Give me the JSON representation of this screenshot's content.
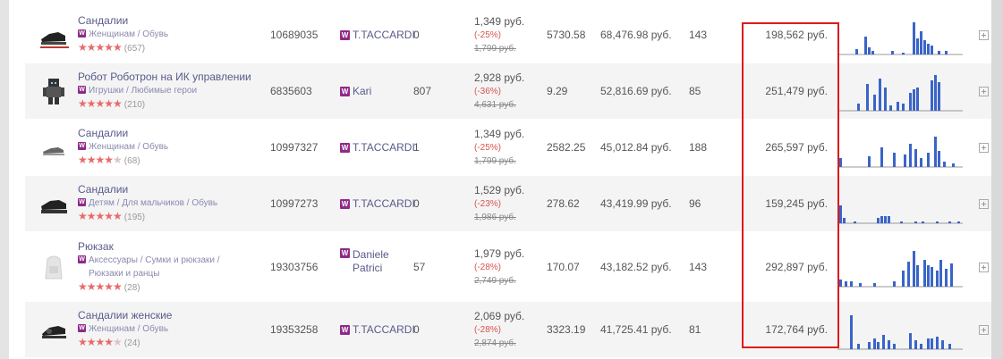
{
  "rows": [
    {
      "name": "Сандалии",
      "category": "Женщинам / Обувь",
      "stars": 5,
      "reviews": "(657)",
      "sku": "10689035",
      "brand": "T.TACCARDI",
      "stock": "0",
      "price": "1,349 руб.",
      "discount": "(-25%)",
      "old_price": "1,799 руб.",
      "col6": "5730.58",
      "revenue": "68,476.98 руб.",
      "col8": "143",
      "highlighted": "198,562 руб.",
      "icon": "sandal-icon",
      "bars": [
        0,
        0,
        0,
        0,
        0,
        0,
        0,
        0,
        0,
        0,
        0,
        0,
        0,
        0,
        0,
        0,
        0,
        0,
        0,
        0,
        0,
        0,
        0,
        0,
        0,
        0,
        0,
        0,
        0,
        0,
        0,
        0,
        0,
        0,
        0,
        0,
        0,
        0,
        0,
        0,
        0,
        0,
        0,
        0,
        0,
        0,
        0,
        0,
        0,
        0,
        0,
        0,
        0,
        0,
        0,
        0,
        0,
        0,
        0,
        0,
        0,
        0,
        0,
        0,
        0,
        0,
        0,
        0,
        0,
        0,
        0,
        0,
        0,
        0,
        0,
        0,
        0,
        0,
        0,
        0,
        0,
        0,
        0,
        0,
        0,
        0,
        0,
        0,
        0,
        0,
        0,
        0,
        0,
        0,
        0,
        0,
        0,
        0,
        0,
        0,
        0,
        0,
        0,
        0,
        0,
        0,
        0,
        0,
        0,
        0,
        0,
        0,
        0,
        0,
        0,
        0
      ]
    },
    {
      "name": "Робот Роботрон на ИК управлении",
      "category": "Игрушки / Любимые герои",
      "stars": 5,
      "reviews": "(210)",
      "sku": "6835603",
      "brand": "Kari",
      "stock": "807",
      "price": "2,928 руб.",
      "discount": "(-36%)",
      "old_price": "4,631 руб.",
      "col6": "9.29",
      "revenue": "52,816.69 руб.",
      "col8": "85",
      "highlighted": "251,479 руб.",
      "icon": "robot-icon"
    },
    {
      "name": "Сандалии",
      "category": "Женщинам / Обувь",
      "stars": 4,
      "reviews": "(68)",
      "sku": "10997327",
      "brand": "T.TACCARDI",
      "stock": "1",
      "price": "1,349 руб.",
      "discount": "(-25%)",
      "old_price": "1,799 руб.",
      "col6": "2582.25",
      "revenue": "45,012.84 руб.",
      "col8": "188",
      "highlighted": "265,597 руб.",
      "icon": "sandal-icon"
    },
    {
      "name": "Сандалии",
      "category": "Детям / Для мальчиков / Обувь",
      "stars": 5,
      "reviews": "(195)",
      "sku": "10997273",
      "brand": "T.TACCARDI",
      "stock": "0",
      "price": "1,529 руб.",
      "discount": "(-23%)",
      "old_price": "1,986 руб.",
      "col6": "278.62",
      "revenue": "43,419.99 руб.",
      "col8": "96",
      "highlighted": "159,245 руб.",
      "icon": "sandal-icon"
    },
    {
      "name": "Рюкзак",
      "category": "Аксессуары / Сумки и рюкзаки / Рюкзаки и ранцы",
      "stars": 5,
      "reviews": "(28)",
      "sku": "19303756",
      "brand": "Daniele Patrici",
      "stock": "57",
      "price": "1,979 руб.",
      "discount": "(-28%)",
      "old_price": "2,749 руб.",
      "col6": "170.07",
      "revenue": "43,182.52 руб.",
      "col8": "143",
      "highlighted": "292,897 руб.",
      "icon": "backpack-icon"
    },
    {
      "name": "Сандалии женские",
      "category": "Женщинам / Обувь",
      "stars": 4,
      "reviews": "(24)",
      "sku": "19353258",
      "brand": "T.TACCARDI",
      "stock": "0",
      "price": "2,069 руб.",
      "discount": "(-28%)",
      "old_price": "2,874 руб.",
      "col6": "3323.19",
      "revenue": "41,725.41 руб.",
      "col8": "81",
      "highlighted": "172,764 руб.",
      "icon": "sandal-icon"
    }
  ],
  "colors": {
    "accent": "#e01818",
    "bar": "#3a64c8",
    "brand_badge": "#8e2a8a",
    "discount": "#d9534f"
  }
}
